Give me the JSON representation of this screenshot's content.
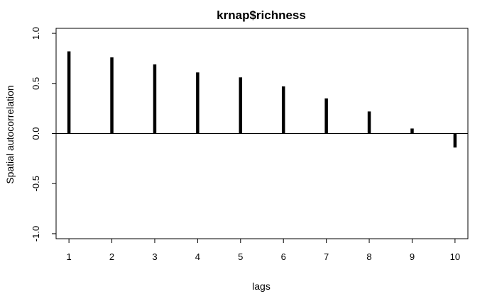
{
  "chart_data": {
    "type": "bar",
    "title": "krnap$richness",
    "xlabel": "lags",
    "ylabel": "Spatial autocorrelation",
    "x": [
      1,
      2,
      3,
      4,
      5,
      6,
      7,
      8,
      9,
      10
    ],
    "values": [
      0.82,
      0.76,
      0.69,
      0.61,
      0.56,
      0.47,
      0.35,
      0.22,
      0.05,
      -0.14
    ],
    "xlim": [
      0.7,
      10.3
    ],
    "ylim": [
      -1.05,
      1.05
    ],
    "xticks": [
      "1",
      "2",
      "3",
      "4",
      "5",
      "6",
      "7",
      "8",
      "9",
      "10"
    ],
    "yticks": [
      "-1.0",
      "-0.5",
      "0.0",
      "0.5",
      "1.0"
    ],
    "reference_line": 0,
    "grid": false,
    "bar_color": "#000000"
  }
}
